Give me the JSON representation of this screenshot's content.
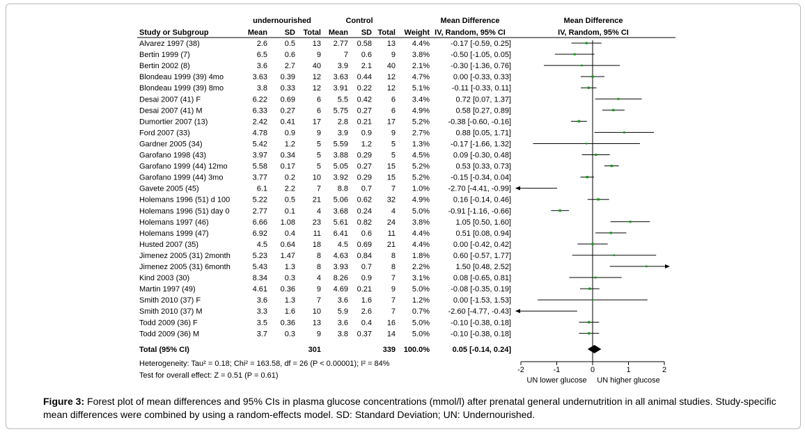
{
  "headers": {
    "group_exp": "undernourished",
    "group_ctl": "Control",
    "study": "Study or Subgroup",
    "mean": "Mean",
    "sd": "SD",
    "total": "Total",
    "weight": "Weight",
    "md_title": "Mean Difference",
    "md_method": "IV, Random, 95% CI"
  },
  "studies": [
    {
      "name": "Alvarez 1997 (38)",
      "m1": "2.6",
      "sd1": "0.5",
      "n1": "13",
      "m2": "2.77",
      "sd2": "0.58",
      "n2": "13",
      "weight": "4.4%",
      "ci": "-0.17 [-0.59, 0.25]"
    },
    {
      "name": "Bertin 1999 (7)",
      "m1": "6.5",
      "sd1": "0.6",
      "n1": "9",
      "m2": "7",
      "sd2": "0.6",
      "n2": "9",
      "weight": "3.8%",
      "ci": "-0.50 [-1.05, 0.05]"
    },
    {
      "name": "Bertin 2002 (8)",
      "m1": "3.6",
      "sd1": "2.7",
      "n1": "40",
      "m2": "3.9",
      "sd2": "2.1",
      "n2": "40",
      "weight": "2.1%",
      "ci": "-0.30 [-1.36, 0.76]"
    },
    {
      "name": "Blondeau 1999 (39) 4mo",
      "m1": "3.63",
      "sd1": "0.39",
      "n1": "12",
      "m2": "3.63",
      "sd2": "0.44",
      "n2": "12",
      "weight": "4.7%",
      "ci": "0.00 [-0.33, 0.33]"
    },
    {
      "name": "Blondeau 1999 (39) 8mo",
      "m1": "3.8",
      "sd1": "0.33",
      "n1": "12",
      "m2": "3.91",
      "sd2": "0.22",
      "n2": "12",
      "weight": "5.1%",
      "ci": "-0.11 [-0.33, 0.11]"
    },
    {
      "name": "Desai 2007 (41) F",
      "m1": "6.22",
      "sd1": "0.69",
      "n1": "6",
      "m2": "5.5",
      "sd2": "0.42",
      "n2": "6",
      "weight": "3.4%",
      "ci": "0.72 [0.07, 1.37]"
    },
    {
      "name": "Desai 2007 (41) M",
      "m1": "6.33",
      "sd1": "0.27",
      "n1": "6",
      "m2": "5.75",
      "sd2": "0.27",
      "n2": "6",
      "weight": "4.9%",
      "ci": "0.58 [0.27, 0.89]"
    },
    {
      "name": "Dumortier 2007 (13)",
      "m1": "2.42",
      "sd1": "0.41",
      "n1": "17",
      "m2": "2.8",
      "sd2": "0.21",
      "n2": "17",
      "weight": "5.2%",
      "ci": "-0.38 [-0.60, -0.16]"
    },
    {
      "name": "Ford 2007 (33)",
      "m1": "4.78",
      "sd1": "0.9",
      "n1": "9",
      "m2": "3.9",
      "sd2": "0.9",
      "n2": "9",
      "weight": "2.7%",
      "ci": "0.88 [0.05, 1.71]"
    },
    {
      "name": "Gardner 2005 (34)",
      "m1": "5.42",
      "sd1": "1.2",
      "n1": "5",
      "m2": "5.59",
      "sd2": "1.2",
      "n2": "5",
      "weight": "1.3%",
      "ci": "-0.17 [-1.66, 1.32]"
    },
    {
      "name": "Garofano 1998 (43)",
      "m1": "3.97",
      "sd1": "0.34",
      "n1": "5",
      "m2": "3.88",
      "sd2": "0.29",
      "n2": "5",
      "weight": "4.5%",
      "ci": "0.09 [-0.30, 0.48]"
    },
    {
      "name": "Garofano 1999 (44) 12mo",
      "m1": "5.58",
      "sd1": "0.17",
      "n1": "5",
      "m2": "5.05",
      "sd2": "0.27",
      "n2": "15",
      "weight": "5.2%",
      "ci": "0.53 [0.33, 0.73]"
    },
    {
      "name": "Garofano 1999 (44) 3mo",
      "m1": "3.77",
      "sd1": "0.2",
      "n1": "10",
      "m2": "3.92",
      "sd2": "0.29",
      "n2": "15",
      "weight": "5.2%",
      "ci": "-0.15 [-0.34, 0.04]"
    },
    {
      "name": "Gavete 2005 (45)",
      "m1": "6.1",
      "sd1": "2.2",
      "n1": "7",
      "m2": "8.8",
      "sd2": "0.7",
      "n2": "7",
      "weight": "1.0%",
      "ci": "-2.70 [-4.41, -0.99]"
    },
    {
      "name": "Holemans 1996 (51) d 100",
      "m1": "5.22",
      "sd1": "0.5",
      "n1": "21",
      "m2": "5.06",
      "sd2": "0.62",
      "n2": "32",
      "weight": "4.9%",
      "ci": "0.16 [-0.14, 0.46]"
    },
    {
      "name": "Holemans 1996 (51) day 0",
      "m1": "2.77",
      "sd1": "0.1",
      "n1": "4",
      "m2": "3.68",
      "sd2": "0.24",
      "n2": "4",
      "weight": "5.0%",
      "ci": "-0.91 [-1.16, -0.66]"
    },
    {
      "name": "Holemans 1997 (46)",
      "m1": "6.66",
      "sd1": "1.08",
      "n1": "23",
      "m2": "5.61",
      "sd2": "0.82",
      "n2": "24",
      "weight": "3.8%",
      "ci": "1.05 [0.50, 1.60]"
    },
    {
      "name": "Holemans 1999 (47)",
      "m1": "6.92",
      "sd1": "0.4",
      "n1": "11",
      "m2": "6.41",
      "sd2": "0.6",
      "n2": "11",
      "weight": "4.4%",
      "ci": "0.51 [0.08, 0.94]"
    },
    {
      "name": "Husted 2007 (35)",
      "m1": "4.5",
      "sd1": "0.64",
      "n1": "18",
      "m2": "4.5",
      "sd2": "0.69",
      "n2": "21",
      "weight": "4.4%",
      "ci": "0.00 [-0.42, 0.42]"
    },
    {
      "name": "Jimenez 2005 (31) 2month",
      "m1": "5.23",
      "sd1": "1.47",
      "n1": "8",
      "m2": "4.63",
      "sd2": "0.84",
      "n2": "8",
      "weight": "1.8%",
      "ci": "0.60 [-0.57, 1.77]"
    },
    {
      "name": "Jimenez 2005 (31) 6month",
      "m1": "5.43",
      "sd1": "1.3",
      "n1": "8",
      "m2": "3.93",
      "sd2": "0.7",
      "n2": "8",
      "weight": "2.2%",
      "ci": "1.50 [0.48, 2.52]"
    },
    {
      "name": "Kind 2003 (30)",
      "m1": "8.34",
      "sd1": "0.3",
      "n1": "4",
      "m2": "8.26",
      "sd2": "0.9",
      "n2": "7",
      "weight": "3.1%",
      "ci": "0.08 [-0.65, 0.81]"
    },
    {
      "name": "Martin 1997 (49)",
      "m1": "4.61",
      "sd1": "0.36",
      "n1": "9",
      "m2": "4.69",
      "sd2": "0.21",
      "n2": "9",
      "weight": "5.0%",
      "ci": "-0.08 [-0.35, 0.19]"
    },
    {
      "name": "Smith 2010 (37) F",
      "m1": "3.6",
      "sd1": "1.3",
      "n1": "7",
      "m2": "3.6",
      "sd2": "1.6",
      "n2": "7",
      "weight": "1.2%",
      "ci": "0.00 [-1.53, 1.53]"
    },
    {
      "name": "Smith 2010 (37) M",
      "m1": "3.3",
      "sd1": "1.6",
      "n1": "10",
      "m2": "5.9",
      "sd2": "2.6",
      "n2": "7",
      "weight": "0.7%",
      "ci": "-2.60 [-4.77, -0.43]"
    },
    {
      "name": "Todd 2009 (36) F",
      "m1": "3.5",
      "sd1": "0.36",
      "n1": "13",
      "m2": "3.6",
      "sd2": "0.4",
      "n2": "16",
      "weight": "5.0%",
      "ci": "-0.10 [-0.38, 0.18]"
    },
    {
      "name": "Todd 2009 (36) M",
      "m1": "3.7",
      "sd1": "0.3",
      "n1": "9",
      "m2": "3.8",
      "sd2": "0.37",
      "n2": "14",
      "weight": "5.0%",
      "ci": "-0.10 [-0.38, 0.18]"
    }
  ],
  "total": {
    "name": "Total (95% CI)",
    "n1": "301",
    "n2": "339",
    "weight": "100.0%",
    "ci": "0.05 [-0.14, 0.24]"
  },
  "heterogeneity": "Heterogeneity: Tau² = 0.18; Chi² = 163.58, df = 26 (P < 0.00001); I² = 84%",
  "overall_effect": "Test for overall effect: Z = 0.51 (P = 0.61)",
  "axis_labels": {
    "left": "UN lower glucose",
    "right": "UN higher glucose"
  },
  "caption": {
    "label": "Figure 3:",
    "text": "Forest plot of mean differences and 95% CIs in plasma glucose concentrations (mmol/l) after prenatal general undernutrition in all animal studies. Study-specific mean differences were combined by using a random-effects model. SD: Standard Deviation; UN: Undernourished."
  },
  "colors": {
    "point": "#00a000",
    "diamond": "#000000",
    "text": "#000000"
  },
  "chart_data": {
    "type": "forest",
    "xlim": [
      -2,
      2
    ],
    "ticks": [
      -2,
      -1,
      0,
      1,
      2
    ],
    "ticklabels": [
      "-2",
      "-1",
      "0",
      "1",
      "2"
    ],
    "zero_line": 0,
    "points": [
      {
        "md": -0.17,
        "lo": -0.59,
        "hi": 0.25,
        "w": 4.4
      },
      {
        "md": -0.5,
        "lo": -1.05,
        "hi": 0.05,
        "w": 3.8
      },
      {
        "md": -0.3,
        "lo": -1.36,
        "hi": 0.76,
        "w": 2.1
      },
      {
        "md": 0.0,
        "lo": -0.33,
        "hi": 0.33,
        "w": 4.7
      },
      {
        "md": -0.11,
        "lo": -0.33,
        "hi": 0.11,
        "w": 5.1
      },
      {
        "md": 0.72,
        "lo": 0.07,
        "hi": 1.37,
        "w": 3.4
      },
      {
        "md": 0.58,
        "lo": 0.27,
        "hi": 0.89,
        "w": 4.9
      },
      {
        "md": -0.38,
        "lo": -0.6,
        "hi": -0.16,
        "w": 5.2
      },
      {
        "md": 0.88,
        "lo": 0.05,
        "hi": 1.71,
        "w": 2.7
      },
      {
        "md": -0.17,
        "lo": -1.66,
        "hi": 1.32,
        "w": 1.3
      },
      {
        "md": 0.09,
        "lo": -0.3,
        "hi": 0.48,
        "w": 4.5
      },
      {
        "md": 0.53,
        "lo": 0.33,
        "hi": 0.73,
        "w": 5.2
      },
      {
        "md": -0.15,
        "lo": -0.34,
        "hi": 0.04,
        "w": 5.2
      },
      {
        "md": -2.7,
        "lo": -4.41,
        "hi": -0.99,
        "w": 1.0
      },
      {
        "md": 0.16,
        "lo": -0.14,
        "hi": 0.46,
        "w": 4.9
      },
      {
        "md": -0.91,
        "lo": -1.16,
        "hi": -0.66,
        "w": 5.0
      },
      {
        "md": 1.05,
        "lo": 0.5,
        "hi": 1.6,
        "w": 3.8
      },
      {
        "md": 0.51,
        "lo": 0.08,
        "hi": 0.94,
        "w": 4.4
      },
      {
        "md": 0.0,
        "lo": -0.42,
        "hi": 0.42,
        "w": 4.4
      },
      {
        "md": 0.6,
        "lo": -0.57,
        "hi": 1.77,
        "w": 1.8
      },
      {
        "md": 1.5,
        "lo": 0.48,
        "hi": 2.52,
        "w": 2.2
      },
      {
        "md": 0.08,
        "lo": -0.65,
        "hi": 0.81,
        "w": 3.1
      },
      {
        "md": -0.08,
        "lo": -0.35,
        "hi": 0.19,
        "w": 5.0
      },
      {
        "md": 0.0,
        "lo": -1.53,
        "hi": 1.53,
        "w": 1.2
      },
      {
        "md": -2.6,
        "lo": -4.77,
        "hi": -0.43,
        "w": 0.7
      },
      {
        "md": -0.1,
        "lo": -0.38,
        "hi": 0.18,
        "w": 5.0
      },
      {
        "md": -0.1,
        "lo": -0.38,
        "hi": 0.18,
        "w": 5.0
      }
    ],
    "pooled": {
      "md": 0.05,
      "lo": -0.14,
      "hi": 0.24
    }
  }
}
